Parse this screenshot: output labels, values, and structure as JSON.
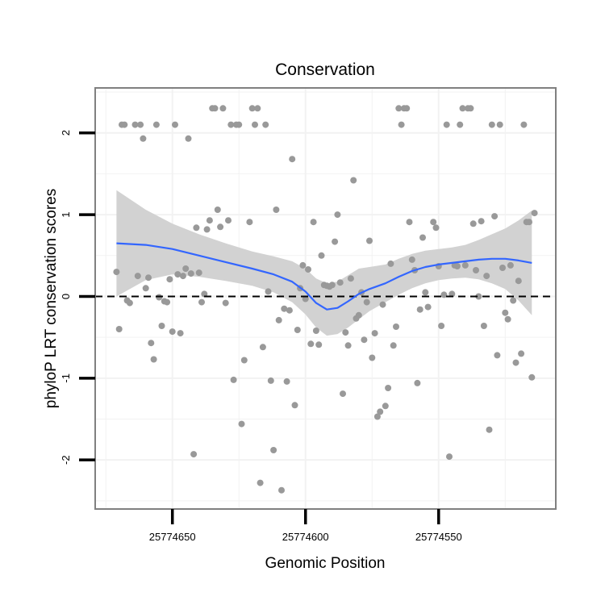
{
  "chart_data": {
    "type": "scatter",
    "title": "Conservation",
    "xlabel": "Genomic Position",
    "ylabel": "phyloP LRT conservation scores",
    "x_reversed": true,
    "xlim": [
      25774679,
      25774506
    ],
    "ylim": [
      -2.6,
      2.55
    ],
    "x_ticks": [
      25774650,
      25774600,
      25774550
    ],
    "x_tick_labels": [
      "25774650",
      "25774600",
      "25774550"
    ],
    "y_ticks": [
      -2,
      -1,
      0,
      1,
      2
    ],
    "y_tick_labels": [
      "-2",
      "-1",
      "0",
      "1",
      "2"
    ],
    "grid": true,
    "reference_line": {
      "y": 0,
      "style": "dashed",
      "color": "#000000"
    },
    "colors": {
      "points": "#999999",
      "smooth": "#3366ff",
      "ribbon": "#d2d2d2",
      "grid": "#f2f2f2",
      "frame": "#808080"
    },
    "points": [
      {
        "x": 25774671,
        "y": 0.3
      },
      {
        "x": 25774670,
        "y": -0.4
      },
      {
        "x": 25774669,
        "y": 2.1
      },
      {
        "x": 25774668,
        "y": 2.1
      },
      {
        "x": 25774667,
        "y": -0.05
      },
      {
        "x": 25774666,
        "y": -0.08
      },
      {
        "x": 25774664,
        "y": 2.1
      },
      {
        "x": 25774663,
        "y": 0.25
      },
      {
        "x": 25774662,
        "y": 2.1
      },
      {
        "x": 25774661,
        "y": 1.93
      },
      {
        "x": 25774660,
        "y": 0.1
      },
      {
        "x": 25774659,
        "y": 0.23
      },
      {
        "x": 25774658,
        "y": -0.57
      },
      {
        "x": 25774657,
        "y": -0.77
      },
      {
        "x": 25774656,
        "y": 2.1
      },
      {
        "x": 25774655,
        "y": -0.01
      },
      {
        "x": 25774654,
        "y": -0.36
      },
      {
        "x": 25774653,
        "y": -0.06
      },
      {
        "x": 25774652,
        "y": -0.07
      },
      {
        "x": 25774651,
        "y": 0.21
      },
      {
        "x": 25774650,
        "y": -0.43
      },
      {
        "x": 25774649,
        "y": 2.1
      },
      {
        "x": 25774648,
        "y": 0.27
      },
      {
        "x": 25774647,
        "y": -0.45
      },
      {
        "x": 25774646,
        "y": 0.25
      },
      {
        "x": 25774645,
        "y": 0.34
      },
      {
        "x": 25774644,
        "y": 1.93
      },
      {
        "x": 25774643,
        "y": 0.28
      },
      {
        "x": 25774642,
        "y": -1.93
      },
      {
        "x": 25774641,
        "y": 0.84
      },
      {
        "x": 25774640,
        "y": 0.29
      },
      {
        "x": 25774639,
        "y": -0.07
      },
      {
        "x": 25774638,
        "y": 0.03
      },
      {
        "x": 25774637,
        "y": 0.82
      },
      {
        "x": 25774636,
        "y": 0.93
      },
      {
        "x": 25774635,
        "y": 2.3
      },
      {
        "x": 25774634,
        "y": 2.3
      },
      {
        "x": 25774633,
        "y": 1.06
      },
      {
        "x": 25774632,
        "y": 0.85
      },
      {
        "x": 25774631,
        "y": 2.3
      },
      {
        "x": 25774630,
        "y": -0.08
      },
      {
        "x": 25774629,
        "y": 0.93
      },
      {
        "x": 25774628,
        "y": 2.1
      },
      {
        "x": 25774627,
        "y": -1.02
      },
      {
        "x": 25774626,
        "y": 2.1
      },
      {
        "x": 25774625,
        "y": 2.1
      },
      {
        "x": 25774624,
        "y": -1.56
      },
      {
        "x": 25774623,
        "y": -0.78
      },
      {
        "x": 25774621,
        "y": 0.91
      },
      {
        "x": 25774620,
        "y": 2.3
      },
      {
        "x": 25774619,
        "y": 2.1
      },
      {
        "x": 25774618,
        "y": 2.3
      },
      {
        "x": 25774617,
        "y": -2.28
      },
      {
        "x": 25774616,
        "y": -0.62
      },
      {
        "x": 25774615,
        "y": 2.1
      },
      {
        "x": 25774614,
        "y": 0.06
      },
      {
        "x": 25774613,
        "y": -1.03
      },
      {
        "x": 25774612,
        "y": -1.88
      },
      {
        "x": 25774611,
        "y": 1.06
      },
      {
        "x": 25774610,
        "y": -0.29
      },
      {
        "x": 25774609,
        "y": -2.37
      },
      {
        "x": 25774608,
        "y": -0.15
      },
      {
        "x": 25774607,
        "y": -1.04
      },
      {
        "x": 25774606,
        "y": -0.17
      },
      {
        "x": 25774605,
        "y": 1.68
      },
      {
        "x": 25774604,
        "y": -1.33
      },
      {
        "x": 25774603,
        "y": -0.41
      },
      {
        "x": 25774602,
        "y": 0.1
      },
      {
        "x": 25774601,
        "y": 0.38
      },
      {
        "x": 25774600,
        "y": -0.03
      },
      {
        "x": 25774599,
        "y": 0.33
      },
      {
        "x": 25774598,
        "y": -0.58
      },
      {
        "x": 25774597,
        "y": 0.91
      },
      {
        "x": 25774596,
        "y": -0.42
      },
      {
        "x": 25774595,
        "y": -0.59
      },
      {
        "x": 25774594,
        "y": 0.5
      },
      {
        "x": 25774593,
        "y": 0.14
      },
      {
        "x": 25774592,
        "y": 0.13
      },
      {
        "x": 25774591,
        "y": 0.12
      },
      {
        "x": 25774590,
        "y": 0.14
      },
      {
        "x": 25774589,
        "y": 0.67
      },
      {
        "x": 25774588,
        "y": 1.0
      },
      {
        "x": 25774587,
        "y": 0.17
      },
      {
        "x": 25774586,
        "y": -1.19
      },
      {
        "x": 25774585,
        "y": -0.44
      },
      {
        "x": 25774584,
        "y": -0.6
      },
      {
        "x": 25774583,
        "y": 0.22
      },
      {
        "x": 25774582,
        "y": 1.42
      },
      {
        "x": 25774581,
        "y": -0.27
      },
      {
        "x": 25774580,
        "y": -0.23
      },
      {
        "x": 25774579,
        "y": 0.05
      },
      {
        "x": 25774578,
        "y": -0.53
      },
      {
        "x": 25774577,
        "y": -0.07
      },
      {
        "x": 25774576,
        "y": 0.68
      },
      {
        "x": 25774575,
        "y": -0.75
      },
      {
        "x": 25774574,
        "y": -0.45
      },
      {
        "x": 25774573,
        "y": -1.47
      },
      {
        "x": 25774572,
        "y": -1.41
      },
      {
        "x": 25774571,
        "y": -0.1
      },
      {
        "x": 25774570,
        "y": -1.34
      },
      {
        "x": 25774569,
        "y": -1.12
      },
      {
        "x": 25774568,
        "y": 0.4
      },
      {
        "x": 25774567,
        "y": -0.6
      },
      {
        "x": 25774566,
        "y": -0.37
      },
      {
        "x": 25774565,
        "y": 2.3
      },
      {
        "x": 25774564,
        "y": 2.1
      },
      {
        "x": 25774563,
        "y": 2.3
      },
      {
        "x": 25774562,
        "y": 2.3
      },
      {
        "x": 25774561,
        "y": 0.91
      },
      {
        "x": 25774560,
        "y": 0.45
      },
      {
        "x": 25774559,
        "y": 0.32
      },
      {
        "x": 25774558,
        "y": -1.06
      },
      {
        "x": 25774557,
        "y": -0.16
      },
      {
        "x": 25774556,
        "y": 0.72
      },
      {
        "x": 25774555,
        "y": 0.05
      },
      {
        "x": 25774554,
        "y": -0.13
      },
      {
        "x": 25774552,
        "y": 0.91
      },
      {
        "x": 25774551,
        "y": 0.84
      },
      {
        "x": 25774550,
        "y": 0.37
      },
      {
        "x": 25774549,
        "y": -0.36
      },
      {
        "x": 25774548,
        "y": 0.02
      },
      {
        "x": 25774547,
        "y": 2.1
      },
      {
        "x": 25774546,
        "y": -1.96
      },
      {
        "x": 25774545,
        "y": 0.03
      },
      {
        "x": 25774544,
        "y": 0.38
      },
      {
        "x": 25774543,
        "y": 0.37
      },
      {
        "x": 25774542,
        "y": 2.1
      },
      {
        "x": 25774541,
        "y": 2.3
      },
      {
        "x": 25774540,
        "y": 0.38
      },
      {
        "x": 25774539,
        "y": 2.3
      },
      {
        "x": 25774538,
        "y": 2.3
      },
      {
        "x": 25774537,
        "y": 0.89
      },
      {
        "x": 25774536,
        "y": 0.32
      },
      {
        "x": 25774535,
        "y": 0.0
      },
      {
        "x": 25774534,
        "y": 0.92
      },
      {
        "x": 25774533,
        "y": -0.36
      },
      {
        "x": 25774532,
        "y": 0.25
      },
      {
        "x": 25774531,
        "y": -1.63
      },
      {
        "x": 25774530,
        "y": 2.1
      },
      {
        "x": 25774529,
        "y": 0.98
      },
      {
        "x": 25774528,
        "y": -0.72
      },
      {
        "x": 25774527,
        "y": 2.1
      },
      {
        "x": 25774526,
        "y": 0.35
      },
      {
        "x": 25774525,
        "y": -0.2
      },
      {
        "x": 25774524,
        "y": -0.28
      },
      {
        "x": 25774523,
        "y": 0.38
      },
      {
        "x": 25774522,
        "y": -0.05
      },
      {
        "x": 25774521,
        "y": -0.81
      },
      {
        "x": 25774520,
        "y": 0.19
      },
      {
        "x": 25774519,
        "y": -0.7
      },
      {
        "x": 25774518,
        "y": 2.1
      },
      {
        "x": 25774517,
        "y": 0.91
      },
      {
        "x": 25774516,
        "y": 0.91
      },
      {
        "x": 25774515,
        "y": -0.99
      },
      {
        "x": 25774514,
        "y": 1.02
      }
    ],
    "smooth": {
      "x": [
        25774671,
        25774660,
        25774650,
        25774640,
        25774630,
        25774620,
        25774612,
        25774605,
        25774600,
        25774596,
        25774592,
        25774588,
        25774584,
        25774580,
        25774576,
        25774570,
        25774565,
        25774560,
        25774555,
        25774550,
        25774545,
        25774540,
        25774535,
        25774530,
        25774525,
        25774520,
        25774515
      ],
      "y": [
        0.65,
        0.63,
        0.58,
        0.5,
        0.42,
        0.34,
        0.27,
        0.18,
        0.06,
        -0.08,
        -0.16,
        -0.14,
        -0.06,
        0.03,
        0.09,
        0.16,
        0.24,
        0.31,
        0.36,
        0.39,
        0.41,
        0.43,
        0.45,
        0.46,
        0.46,
        0.44,
        0.41
      ],
      "lower": [
        0.0,
        0.2,
        0.27,
        0.24,
        0.19,
        0.13,
        0.05,
        -0.07,
        -0.22,
        -0.38,
        -0.48,
        -0.46,
        -0.38,
        -0.28,
        -0.18,
        -0.07,
        0.02,
        0.1,
        0.16,
        0.2,
        0.22,
        0.23,
        0.21,
        0.16,
        0.09,
        -0.05,
        -0.23
      ],
      "upper": [
        1.3,
        1.06,
        0.89,
        0.76,
        0.65,
        0.55,
        0.49,
        0.43,
        0.34,
        0.22,
        0.16,
        0.18,
        0.26,
        0.34,
        0.36,
        0.39,
        0.46,
        0.52,
        0.56,
        0.58,
        0.6,
        0.63,
        0.69,
        0.76,
        0.83,
        0.93,
        1.05
      ]
    }
  }
}
